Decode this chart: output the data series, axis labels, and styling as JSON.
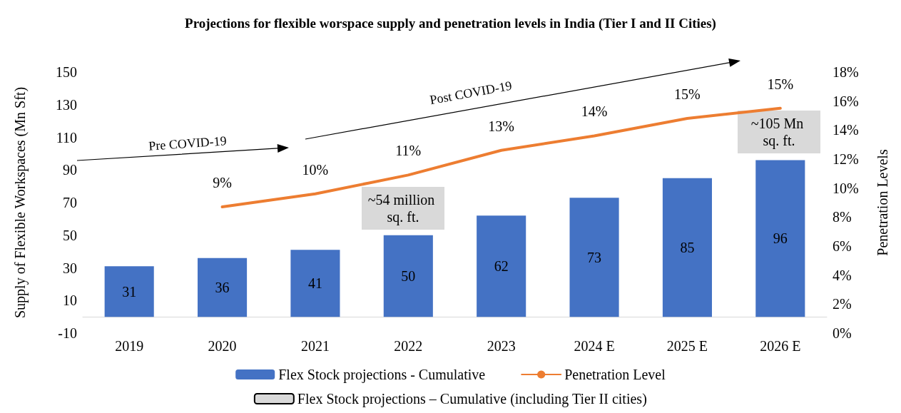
{
  "chart_data": {
    "type": "bar",
    "title": "Projections for flexible worspace supply and penetration levels in India (Tier I and II Cities)",
    "ylabel": "Supply of Flexible Workspaces (Mn Sft)",
    "y2label": "Penetration Levels",
    "categories": [
      "2019",
      "2020",
      "2021",
      "2022",
      "2023",
      "2024 E",
      "2025 E",
      "2026 E"
    ],
    "series": [
      {
        "name": "Flex Stock projections - Cumulative",
        "color": "#4472c4",
        "values": [
          31,
          36,
          41,
          50,
          62,
          73,
          85,
          96
        ],
        "data_labels": true
      },
      {
        "name": "Penetration Level",
        "type": "line",
        "axis": "y2",
        "color": "#ed7d31",
        "values": [
          null,
          8.7,
          9.6,
          10.9,
          12.6,
          13.6,
          14.8,
          15.5
        ],
        "value_labels": [
          null,
          "9%",
          "10%",
          "11%",
          "13%",
          "14%",
          "15%",
          "15%"
        ]
      },
      {
        "name": "Flex Stock projections – Cumulative (including Tier II cities)",
        "color": "#d9d9d9",
        "values": [
          null,
          null,
          null,
          null,
          null,
          null,
          null,
          null
        ]
      }
    ],
    "ylim": [
      -10,
      150
    ],
    "yticks": [
      -10,
      10,
      30,
      50,
      70,
      90,
      110,
      130,
      150
    ],
    "y2lim": [
      0,
      18
    ],
    "y2ticks": [
      {
        "value": 0,
        "label": "0%"
      },
      {
        "value": 2,
        "label": "2%"
      },
      {
        "value": 4,
        "label": "4%"
      },
      {
        "value": 6,
        "label": "6%"
      },
      {
        "value": 8,
        "label": "8%"
      },
      {
        "value": 10,
        "label": "10%"
      },
      {
        "value": 12,
        "label": "12%"
      },
      {
        "value": 14,
        "label": "14%"
      },
      {
        "value": 16,
        "label": "16%"
      },
      {
        "value": 18,
        "label": "18%"
      }
    ],
    "annotations": [
      "Pre COVID-19",
      "Post COVID-19",
      "~54 million sq. ft.",
      "~105 Mn sq. ft."
    ],
    "grid": false,
    "legend": "bottom",
    "marker": "none",
    "line_style": "solid"
  }
}
